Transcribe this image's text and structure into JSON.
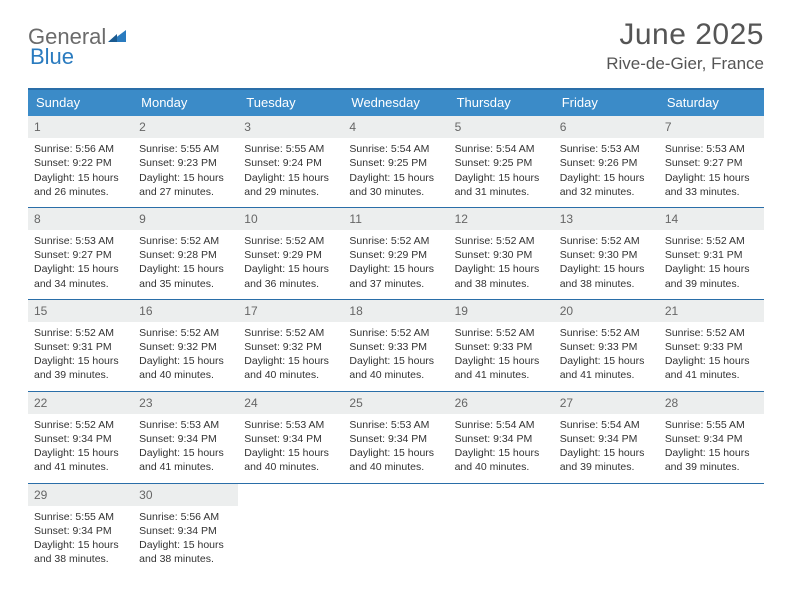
{
  "logo": {
    "text1": "General",
    "text2": "Blue"
  },
  "title": {
    "month": "June 2025",
    "location": "Rive-de-Gier, France"
  },
  "colors": {
    "header_bg": "#3b8bc8",
    "border": "#2a6ea8",
    "daynum_bg": "#eceeee",
    "text": "#333333",
    "logo_gray": "#6b6b6b",
    "logo_blue": "#2a7bbf"
  },
  "day_labels": [
    "Sunday",
    "Monday",
    "Tuesday",
    "Wednesday",
    "Thursday",
    "Friday",
    "Saturday"
  ],
  "weeks": [
    [
      {
        "n": "1",
        "sr": "Sunrise: 5:56 AM",
        "ss": "Sunset: 9:22 PM",
        "d1": "Daylight: 15 hours",
        "d2": "and 26 minutes."
      },
      {
        "n": "2",
        "sr": "Sunrise: 5:55 AM",
        "ss": "Sunset: 9:23 PM",
        "d1": "Daylight: 15 hours",
        "d2": "and 27 minutes."
      },
      {
        "n": "3",
        "sr": "Sunrise: 5:55 AM",
        "ss": "Sunset: 9:24 PM",
        "d1": "Daylight: 15 hours",
        "d2": "and 29 minutes."
      },
      {
        "n": "4",
        "sr": "Sunrise: 5:54 AM",
        "ss": "Sunset: 9:25 PM",
        "d1": "Daylight: 15 hours",
        "d2": "and 30 minutes."
      },
      {
        "n": "5",
        "sr": "Sunrise: 5:54 AM",
        "ss": "Sunset: 9:25 PM",
        "d1": "Daylight: 15 hours",
        "d2": "and 31 minutes."
      },
      {
        "n": "6",
        "sr": "Sunrise: 5:53 AM",
        "ss": "Sunset: 9:26 PM",
        "d1": "Daylight: 15 hours",
        "d2": "and 32 minutes."
      },
      {
        "n": "7",
        "sr": "Sunrise: 5:53 AM",
        "ss": "Sunset: 9:27 PM",
        "d1": "Daylight: 15 hours",
        "d2": "and 33 minutes."
      }
    ],
    [
      {
        "n": "8",
        "sr": "Sunrise: 5:53 AM",
        "ss": "Sunset: 9:27 PM",
        "d1": "Daylight: 15 hours",
        "d2": "and 34 minutes."
      },
      {
        "n": "9",
        "sr": "Sunrise: 5:52 AM",
        "ss": "Sunset: 9:28 PM",
        "d1": "Daylight: 15 hours",
        "d2": "and 35 minutes."
      },
      {
        "n": "10",
        "sr": "Sunrise: 5:52 AM",
        "ss": "Sunset: 9:29 PM",
        "d1": "Daylight: 15 hours",
        "d2": "and 36 minutes."
      },
      {
        "n": "11",
        "sr": "Sunrise: 5:52 AM",
        "ss": "Sunset: 9:29 PM",
        "d1": "Daylight: 15 hours",
        "d2": "and 37 minutes."
      },
      {
        "n": "12",
        "sr": "Sunrise: 5:52 AM",
        "ss": "Sunset: 9:30 PM",
        "d1": "Daylight: 15 hours",
        "d2": "and 38 minutes."
      },
      {
        "n": "13",
        "sr": "Sunrise: 5:52 AM",
        "ss": "Sunset: 9:30 PM",
        "d1": "Daylight: 15 hours",
        "d2": "and 38 minutes."
      },
      {
        "n": "14",
        "sr": "Sunrise: 5:52 AM",
        "ss": "Sunset: 9:31 PM",
        "d1": "Daylight: 15 hours",
        "d2": "and 39 minutes."
      }
    ],
    [
      {
        "n": "15",
        "sr": "Sunrise: 5:52 AM",
        "ss": "Sunset: 9:31 PM",
        "d1": "Daylight: 15 hours",
        "d2": "and 39 minutes."
      },
      {
        "n": "16",
        "sr": "Sunrise: 5:52 AM",
        "ss": "Sunset: 9:32 PM",
        "d1": "Daylight: 15 hours",
        "d2": "and 40 minutes."
      },
      {
        "n": "17",
        "sr": "Sunrise: 5:52 AM",
        "ss": "Sunset: 9:32 PM",
        "d1": "Daylight: 15 hours",
        "d2": "and 40 minutes."
      },
      {
        "n": "18",
        "sr": "Sunrise: 5:52 AM",
        "ss": "Sunset: 9:33 PM",
        "d1": "Daylight: 15 hours",
        "d2": "and 40 minutes."
      },
      {
        "n": "19",
        "sr": "Sunrise: 5:52 AM",
        "ss": "Sunset: 9:33 PM",
        "d1": "Daylight: 15 hours",
        "d2": "and 41 minutes."
      },
      {
        "n": "20",
        "sr": "Sunrise: 5:52 AM",
        "ss": "Sunset: 9:33 PM",
        "d1": "Daylight: 15 hours",
        "d2": "and 41 minutes."
      },
      {
        "n": "21",
        "sr": "Sunrise: 5:52 AM",
        "ss": "Sunset: 9:33 PM",
        "d1": "Daylight: 15 hours",
        "d2": "and 41 minutes."
      }
    ],
    [
      {
        "n": "22",
        "sr": "Sunrise: 5:52 AM",
        "ss": "Sunset: 9:34 PM",
        "d1": "Daylight: 15 hours",
        "d2": "and 41 minutes."
      },
      {
        "n": "23",
        "sr": "Sunrise: 5:53 AM",
        "ss": "Sunset: 9:34 PM",
        "d1": "Daylight: 15 hours",
        "d2": "and 41 minutes."
      },
      {
        "n": "24",
        "sr": "Sunrise: 5:53 AM",
        "ss": "Sunset: 9:34 PM",
        "d1": "Daylight: 15 hours",
        "d2": "and 40 minutes."
      },
      {
        "n": "25",
        "sr": "Sunrise: 5:53 AM",
        "ss": "Sunset: 9:34 PM",
        "d1": "Daylight: 15 hours",
        "d2": "and 40 minutes."
      },
      {
        "n": "26",
        "sr": "Sunrise: 5:54 AM",
        "ss": "Sunset: 9:34 PM",
        "d1": "Daylight: 15 hours",
        "d2": "and 40 minutes."
      },
      {
        "n": "27",
        "sr": "Sunrise: 5:54 AM",
        "ss": "Sunset: 9:34 PM",
        "d1": "Daylight: 15 hours",
        "d2": "and 39 minutes."
      },
      {
        "n": "28",
        "sr": "Sunrise: 5:55 AM",
        "ss": "Sunset: 9:34 PM",
        "d1": "Daylight: 15 hours",
        "d2": "and 39 minutes."
      }
    ],
    [
      {
        "n": "29",
        "sr": "Sunrise: 5:55 AM",
        "ss": "Sunset: 9:34 PM",
        "d1": "Daylight: 15 hours",
        "d2": "and 38 minutes."
      },
      {
        "n": "30",
        "sr": "Sunrise: 5:56 AM",
        "ss": "Sunset: 9:34 PM",
        "d1": "Daylight: 15 hours",
        "d2": "and 38 minutes."
      },
      {
        "empty": true
      },
      {
        "empty": true
      },
      {
        "empty": true
      },
      {
        "empty": true
      },
      {
        "empty": true
      }
    ]
  ]
}
